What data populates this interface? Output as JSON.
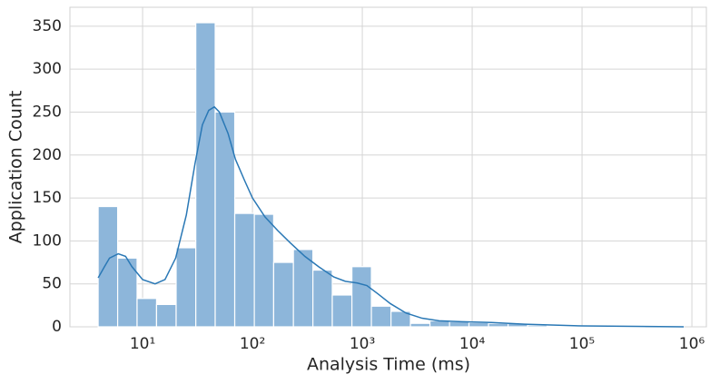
{
  "chart_data": {
    "type": "histogram",
    "xlabel": "Analysis Time (ms)",
    "ylabel": "Application Count",
    "xscale": "log",
    "grid": true,
    "color": "#8db6da",
    "bins": [
      3.94,
      5.93,
      8.91,
      13.4,
      20.2,
      30.5,
      45.8,
      69.0,
      104,
      156,
      236,
      355,
      533,
      804,
      1210,
      1824,
      2742,
      4130,
      6220,
      9354,
      14090,
      21230,
      31990,
      48080,
      72440,
      109100,
      164100,
      247200,
      372400,
      561000,
      843400
    ],
    "counts": [
      140,
      80,
      33,
      26,
      92,
      354,
      250,
      132,
      131,
      75,
      90,
      66,
      37,
      70,
      24,
      18,
      4,
      7,
      6,
      5,
      4,
      4,
      2,
      1,
      1,
      1,
      1,
      1,
      0,
      1
    ],
    "kde": {
      "color": "#2a78b5",
      "x": [
        3.94,
        4.5,
        5,
        6,
        7,
        8,
        10,
        13,
        16,
        20,
        25,
        30,
        35,
        40,
        45,
        50,
        60,
        70,
        85,
        100,
        130,
        170,
        220,
        300,
        400,
        550,
        700,
        900,
        1100,
        1400,
        1800,
        2500,
        3500,
        5000,
        8000,
        15000,
        30000,
        100000,
        300000,
        843400
      ],
      "values": [
        57,
        70,
        80,
        85,
        82,
        70,
        55,
        50,
        55,
        80,
        130,
        190,
        235,
        252,
        256,
        250,
        225,
        195,
        170,
        150,
        128,
        112,
        98,
        82,
        70,
        58,
        53,
        51,
        48,
        38,
        27,
        16,
        10,
        7,
        6,
        5,
        3,
        1,
        0.5,
        0
      ]
    },
    "xlim": [
      2.18,
      1355000
    ],
    "ylim": [
      0,
      372
    ],
    "xticks": [
      {
        "value": 10,
        "label": "10¹"
      },
      {
        "value": 100,
        "label": "10²"
      },
      {
        "value": 1000,
        "label": "10³"
      },
      {
        "value": 10000,
        "label": "10⁴"
      },
      {
        "value": 100000,
        "label": "10⁵"
      },
      {
        "value": 1000000,
        "label": "10⁶"
      }
    ],
    "yticks": [
      0,
      50,
      100,
      150,
      200,
      250,
      300,
      350
    ]
  }
}
